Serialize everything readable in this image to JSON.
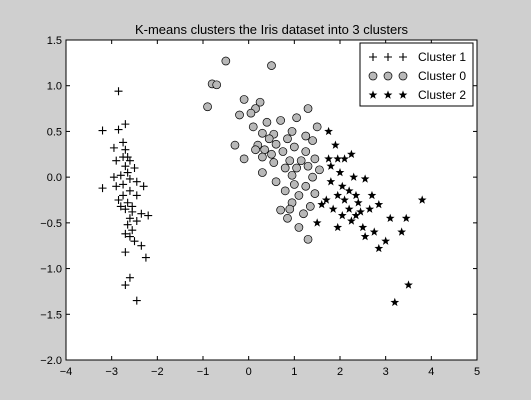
{
  "chart_data": {
    "type": "scatter",
    "title": "K-means clusters the Iris dataset into 3 clusters",
    "xlabel": "",
    "ylabel": "",
    "xlim": [
      -4,
      5
    ],
    "ylim": [
      -2.0,
      1.5
    ],
    "grid": false,
    "legend_position": "top-right",
    "x_ticks": [
      "−4",
      "−3",
      "−2",
      "−1",
      "0",
      "1",
      "2",
      "3",
      "4",
      "5"
    ],
    "y_ticks": [
      "1.5",
      "1.0",
      "0.5",
      "0.0",
      "−0.5",
      "−1.0",
      "−1.5",
      "−2.0"
    ],
    "colors": {
      "background": "#cfcfcf",
      "plot_area": "#ffffff",
      "marker_circle_fill": "#b8b8b8",
      "marker_stroke": "#000000"
    },
    "series": [
      {
        "name": "Cluster 1",
        "marker": "plus",
        "points": [
          [
            -2.85,
            0.94
          ],
          [
            -2.7,
            0.58
          ],
          [
            -2.85,
            0.52
          ],
          [
            -3.2,
            0.51
          ],
          [
            -2.75,
            0.38
          ],
          [
            -2.95,
            0.32
          ],
          [
            -2.7,
            0.3
          ],
          [
            -2.65,
            0.22
          ],
          [
            -2.75,
            0.22
          ],
          [
            -2.6,
            0.18
          ],
          [
            -2.9,
            0.18
          ],
          [
            -2.7,
            0.12
          ],
          [
            -2.5,
            0.1
          ],
          [
            -2.65,
            0.05
          ],
          [
            -2.8,
            0.02
          ],
          [
            -2.95,
            0.0
          ],
          [
            -2.6,
            -0.02
          ],
          [
            -2.45,
            -0.05
          ],
          [
            -2.75,
            -0.08
          ],
          [
            -2.9,
            -0.1
          ],
          [
            -3.2,
            -0.12
          ],
          [
            -2.3,
            -0.1
          ],
          [
            -2.6,
            -0.15
          ],
          [
            -2.45,
            -0.2
          ],
          [
            -2.75,
            -0.2
          ],
          [
            -2.85,
            -0.25
          ],
          [
            -2.65,
            -0.28
          ],
          [
            -2.8,
            -0.32
          ],
          [
            -2.55,
            -0.32
          ],
          [
            -2.7,
            -0.35
          ],
          [
            -2.55,
            -0.38
          ],
          [
            -2.35,
            -0.4
          ],
          [
            -2.2,
            -0.42
          ],
          [
            -2.6,
            -0.45
          ],
          [
            -2.45,
            -0.48
          ],
          [
            -2.65,
            -0.52
          ],
          [
            -2.55,
            -0.58
          ],
          [
            -2.7,
            -0.62
          ],
          [
            -2.6,
            -0.65
          ],
          [
            -2.5,
            -0.7
          ],
          [
            -2.35,
            -0.75
          ],
          [
            -2.7,
            -0.82
          ],
          [
            -2.25,
            -0.88
          ],
          [
            -2.6,
            -1.1
          ],
          [
            -2.7,
            -1.18
          ],
          [
            -2.45,
            -1.35
          ]
        ]
      },
      {
        "name": "Cluster 0",
        "marker": "circle",
        "points": [
          [
            -0.5,
            1.27
          ],
          [
            0.5,
            1.22
          ],
          [
            -0.8,
            1.02
          ],
          [
            -0.7,
            1.01
          ],
          [
            -0.9,
            0.77
          ],
          [
            -0.1,
            0.85
          ],
          [
            0.25,
            0.82
          ],
          [
            0.15,
            0.75
          ],
          [
            1.3,
            0.75
          ],
          [
            0.05,
            0.7
          ],
          [
            -0.2,
            0.68
          ],
          [
            1.05,
            0.65
          ],
          [
            0.7,
            0.62
          ],
          [
            0.4,
            0.6
          ],
          [
            0.1,
            0.55
          ],
          [
            1.5,
            0.55
          ],
          [
            0.95,
            0.5
          ],
          [
            0.3,
            0.48
          ],
          [
            0.55,
            0.47
          ],
          [
            1.25,
            0.45
          ],
          [
            0.45,
            0.42
          ],
          [
            0.85,
            0.42
          ],
          [
            1.4,
            0.4
          ],
          [
            0.6,
            0.36
          ],
          [
            0.2,
            0.35
          ],
          [
            -0.3,
            0.35
          ],
          [
            1.0,
            0.33
          ],
          [
            0.35,
            0.3
          ],
          [
            0.15,
            0.3
          ],
          [
            0.75,
            0.28
          ],
          [
            1.25,
            0.28
          ],
          [
            0.5,
            0.25
          ],
          [
            0.3,
            0.22
          ],
          [
            -0.1,
            0.2
          ],
          [
            1.45,
            0.2
          ],
          [
            0.9,
            0.18
          ],
          [
            1.15,
            0.18
          ],
          [
            0.55,
            0.16
          ],
          [
            1.3,
            0.12
          ],
          [
            0.8,
            0.1
          ],
          [
            1.05,
            0.1
          ],
          [
            1.55,
            0.08
          ],
          [
            0.3,
            0.05
          ],
          [
            0.95,
            0.02
          ],
          [
            1.4,
            0.0
          ],
          [
            0.6,
            -0.05
          ],
          [
            1.0,
            -0.08
          ],
          [
            1.25,
            -0.1
          ],
          [
            0.8,
            -0.15
          ],
          [
            1.45,
            -0.18
          ],
          [
            1.1,
            -0.2
          ],
          [
            0.95,
            -0.28
          ],
          [
            1.35,
            -0.32
          ],
          [
            0.7,
            -0.36
          ],
          [
            1.2,
            -0.4
          ],
          [
            0.85,
            -0.45
          ],
          [
            1.1,
            -0.55
          ],
          [
            1.3,
            -0.68
          ],
          [
            0.9,
            -0.35
          ]
        ]
      },
      {
        "name": "Cluster 2",
        "marker": "star",
        "points": [
          [
            1.75,
            0.5
          ],
          [
            1.9,
            0.35
          ],
          [
            1.75,
            0.2
          ],
          [
            1.95,
            0.2
          ],
          [
            2.1,
            0.2
          ],
          [
            2.25,
            0.25
          ],
          [
            1.8,
            0.12
          ],
          [
            2.0,
            0.05
          ],
          [
            2.3,
            0.0
          ],
          [
            2.55,
            -0.02
          ],
          [
            1.8,
            -0.05
          ],
          [
            2.05,
            -0.1
          ],
          [
            2.2,
            -0.15
          ],
          [
            1.95,
            -0.2
          ],
          [
            2.35,
            -0.2
          ],
          [
            2.7,
            -0.2
          ],
          [
            1.7,
            -0.25
          ],
          [
            2.1,
            -0.25
          ],
          [
            2.4,
            -0.28
          ],
          [
            1.6,
            -0.3
          ],
          [
            2.85,
            -0.3
          ],
          [
            3.8,
            -0.25
          ],
          [
            1.85,
            -0.35
          ],
          [
            2.2,
            -0.35
          ],
          [
            2.45,
            -0.38
          ],
          [
            2.65,
            -0.35
          ],
          [
            2.05,
            -0.42
          ],
          [
            2.35,
            -0.42
          ],
          [
            1.5,
            -0.5
          ],
          [
            3.1,
            -0.45
          ],
          [
            3.45,
            -0.45
          ],
          [
            2.5,
            -0.55
          ],
          [
            2.75,
            -0.6
          ],
          [
            3.35,
            -0.6
          ],
          [
            2.55,
            -0.65
          ],
          [
            3.0,
            -0.7
          ],
          [
            2.85,
            -0.78
          ],
          [
            3.5,
            -1.18
          ],
          [
            3.2,
            -1.37
          ],
          [
            1.95,
            -0.55
          ],
          [
            2.25,
            -0.48
          ]
        ]
      }
    ]
  }
}
